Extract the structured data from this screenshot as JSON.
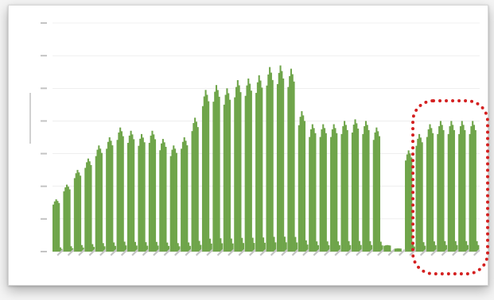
{
  "chart_data": {
    "type": "bar",
    "title": "",
    "ylabel": "",
    "xlabel": "",
    "ylim": [
      0,
      7000
    ],
    "yticks": [
      0,
      1000,
      2000,
      3000,
      4000,
      5000,
      6000,
      7000
    ],
    "grid": true,
    "color": "#6fa54a",
    "highlight_color": "#d42020",
    "week_peaks": [
      1600,
      2050,
      2500,
      2850,
      3250,
      3500,
      3800,
      3700,
      3600,
      3700,
      3450,
      3250,
      3500,
      4100,
      4950,
      5100,
      5000,
      5250,
      5300,
      5400,
      5650,
      5700,
      5600,
      4300,
      3900,
      3900,
      3900,
      4000,
      4050,
      4000,
      3800,
      200,
      100,
      3100,
      3600,
      3900,
      4000,
      4000,
      4000,
      4000
    ],
    "highlighted_range": [
      33,
      39
    ]
  }
}
